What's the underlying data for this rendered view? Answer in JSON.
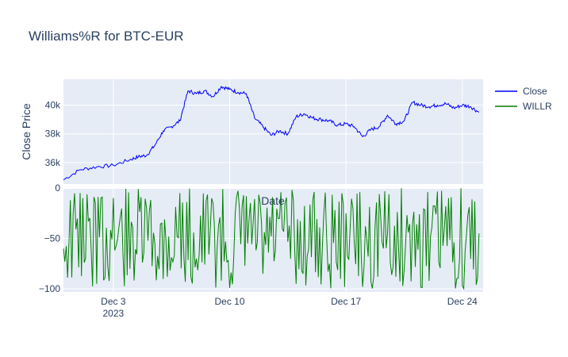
{
  "chart_data": [
    {
      "type": "line",
      "title": "Williams%R for BTC-EUR",
      "xlabel": "",
      "ylabel": "Close Price",
      "x_range": [
        "2023-11-30",
        "2023-12-25"
      ],
      "ylim": [
        34500,
        41800
      ],
      "y_ticks": [
        36000,
        38000,
        40000
      ],
      "y_tick_labels": [
        "36k",
        "38k",
        "40k"
      ],
      "grid": true,
      "legend_position": "top-right",
      "series": [
        {
          "name": "Close",
          "color": "#0000ff",
          "x": [
            "2023-11-30",
            "2023-12-01",
            "2023-12-02",
            "2023-12-03",
            "2023-12-04",
            "2023-12-04T12:00",
            "2023-12-05",
            "2023-12-05T12:00",
            "2023-12-06",
            "2023-12-06T12:00",
            "2023-12-07",
            "2023-12-07T12:00",
            "2023-12-08",
            "2023-12-08T12:00",
            "2023-12-09",
            "2023-12-09T12:00",
            "2023-12-10",
            "2023-12-10T12:00",
            "2023-12-11",
            "2023-12-11T12:00",
            "2023-12-12",
            "2023-12-12T12:00",
            "2023-12-13",
            "2023-12-13T12:00",
            "2023-12-14",
            "2023-12-14T12:00",
            "2023-12-15",
            "2023-12-15T12:00",
            "2023-12-16",
            "2023-12-16T12:00",
            "2023-12-17",
            "2023-12-17T12:00",
            "2023-12-18",
            "2023-12-18T12:00",
            "2023-12-19",
            "2023-12-19T12:00",
            "2023-12-20",
            "2023-12-20T12:00",
            "2023-12-21",
            "2023-12-21T12:00",
            "2023-12-22",
            "2023-12-22T12:00",
            "2023-12-23",
            "2023-12-23T12:00",
            "2023-12-24",
            "2023-12-24T12:00",
            "2023-12-25"
          ],
          "values": [
            34800,
            35500,
            35700,
            35800,
            36200,
            36400,
            36500,
            37200,
            38200,
            38500,
            38900,
            41000,
            40800,
            41000,
            40600,
            41300,
            41100,
            40900,
            40800,
            39100,
            38500,
            37900,
            38200,
            38000,
            39200,
            39400,
            39100,
            39000,
            38900,
            38600,
            38700,
            38500,
            37800,
            38300,
            38500,
            39300,
            38700,
            38900,
            40200,
            40000,
            39900,
            40000,
            40100,
            39800,
            40000,
            39900,
            39500
          ]
        }
      ]
    },
    {
      "type": "line",
      "title": "",
      "xlabel": "Date",
      "ylabel": "",
      "x_range": [
        "2023-11-30",
        "2023-12-25"
      ],
      "ylim": [
        -103,
        0
      ],
      "y_ticks": [
        0,
        -50,
        -100
      ],
      "y_tick_labels": [
        "0",
        "−50",
        "−100"
      ],
      "x_tick_labels": [
        "Dec 3\n2023",
        "Dec 10",
        "Dec 17",
        "Dec 24"
      ],
      "x_ticks": [
        "2023-12-03",
        "2023-12-10",
        "2023-12-17",
        "2023-12-24"
      ],
      "grid": true,
      "series": [
        {
          "name": "WILLR",
          "color": "#008000",
          "x": [
            "2023-11-30",
            "2023-12-01",
            "2023-12-02",
            "2023-12-03",
            "2023-12-04",
            "2023-12-05",
            "2023-12-06",
            "2023-12-07",
            "2023-12-08",
            "2023-12-09",
            "2023-12-10",
            "2023-12-11",
            "2023-12-12",
            "2023-12-13",
            "2023-12-14",
            "2023-12-15",
            "2023-12-16",
            "2023-12-17",
            "2023-12-18",
            "2023-12-19",
            "2023-12-20",
            "2023-12-21",
            "2023-12-22",
            "2023-12-23",
            "2023-12-24",
            "2023-12-25"
          ],
          "values": [
            -60,
            -5,
            -95,
            -10,
            -80,
            -20,
            -90,
            -5,
            -70,
            -15,
            -99,
            -8,
            -85,
            -30,
            -95,
            -12,
            -75,
            -25,
            -98,
            -6,
            -88,
            -35,
            -92,
            -18,
            -97,
            -45
          ]
        }
      ]
    }
  ],
  "legend": [
    {
      "label": "Close",
      "color": "#0000ff"
    },
    {
      "label": "WILLR",
      "color": "#008000"
    }
  ]
}
